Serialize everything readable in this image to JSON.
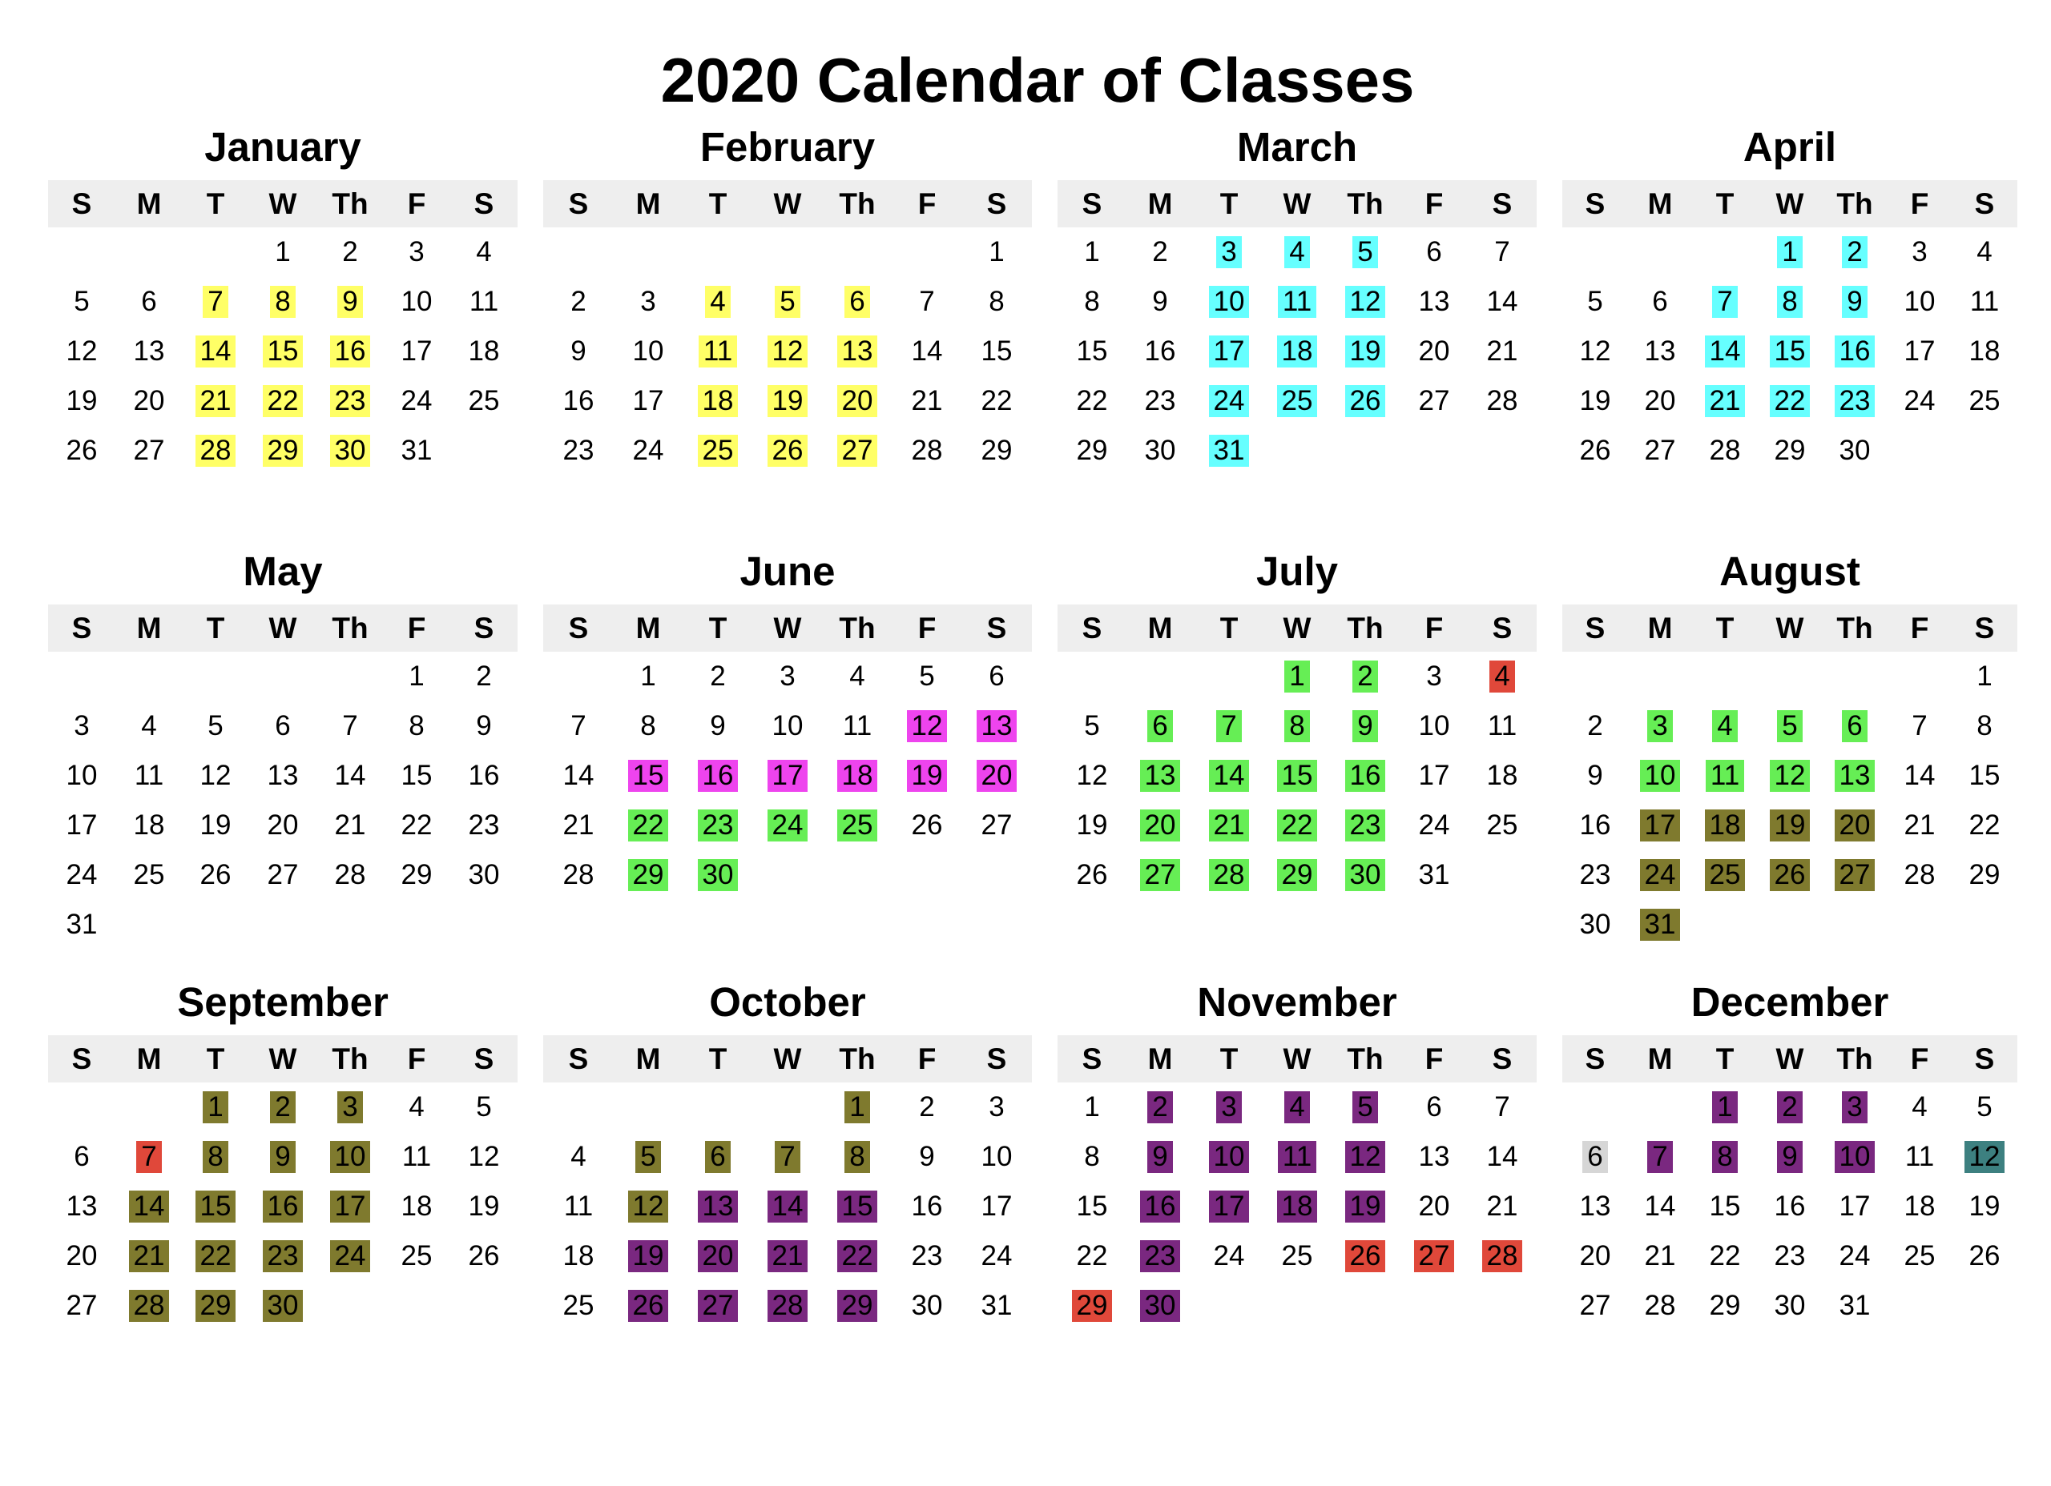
{
  "title": "2020 Calendar of Classes",
  "weekdays": [
    "S",
    "M",
    "T",
    "W",
    "Th",
    "F",
    "S"
  ],
  "colors": {
    "Y": "#ffff66",
    "C": "#66ffff",
    "M": "#ee44ee",
    "G": "#66ee55",
    "O": "#7f7a2e",
    "P": "#7a2880",
    "R": "#e0483a",
    "L": "#d6d6d6",
    "T": "#3d8080"
  },
  "months": [
    {
      "name": "January",
      "start": 3,
      "days": 31,
      "hl": {
        "7": "Y",
        "8": "Y",
        "9": "Y",
        "14": "Y",
        "15": "Y",
        "16": "Y",
        "21": "Y",
        "22": "Y",
        "23": "Y",
        "28": "Y",
        "29": "Y",
        "30": "Y"
      }
    },
    {
      "name": "February",
      "start": 6,
      "days": 29,
      "hl": {
        "4": "Y",
        "5": "Y",
        "6": "Y",
        "11": "Y",
        "12": "Y",
        "13": "Y",
        "18": "Y",
        "19": "Y",
        "20": "Y",
        "25": "Y",
        "26": "Y",
        "27": "Y"
      }
    },
    {
      "name": "March",
      "start": 0,
      "days": 31,
      "hl": {
        "3": "C",
        "4": "C",
        "5": "C",
        "10": "C",
        "11": "C",
        "12": "C",
        "17": "C",
        "18": "C",
        "19": "C",
        "24": "C",
        "25": "C",
        "26": "C",
        "31": "C"
      }
    },
    {
      "name": "April",
      "start": 3,
      "days": 30,
      "hl": {
        "1": "C",
        "2": "C",
        "7": "C",
        "8": "C",
        "9": "C",
        "14": "C",
        "15": "C",
        "16": "C",
        "21": "C",
        "22": "C",
        "23": "C"
      }
    },
    {
      "name": "May",
      "start": 5,
      "days": 31,
      "hl": {}
    },
    {
      "name": "June",
      "start": 1,
      "days": 30,
      "hl": {
        "12": "M",
        "13": "M",
        "15": "M",
        "16": "M",
        "17": "M",
        "18": "M",
        "19": "M",
        "20": "M",
        "22": "G",
        "23": "G",
        "24": "G",
        "25": "G",
        "29": "G",
        "30": "G"
      }
    },
    {
      "name": "July",
      "start": 3,
      "days": 31,
      "hl": {
        "1": "G",
        "2": "G",
        "4": "R",
        "6": "G",
        "7": "G",
        "8": "G",
        "9": "G",
        "13": "G",
        "14": "G",
        "15": "G",
        "16": "G",
        "20": "G",
        "21": "G",
        "22": "G",
        "23": "G",
        "27": "G",
        "28": "G",
        "29": "G",
        "30": "G"
      }
    },
    {
      "name": "August",
      "start": 6,
      "days": 31,
      "hl": {
        "3": "G",
        "4": "G",
        "5": "G",
        "6": "G",
        "10": "G",
        "11": "G",
        "12": "G",
        "13": "G",
        "17": "O",
        "18": "O",
        "19": "O",
        "20": "O",
        "24": "O",
        "25": "O",
        "26": "O",
        "27": "O",
        "31": "O"
      }
    },
    {
      "name": "September",
      "start": 2,
      "days": 30,
      "hl": {
        "1": "O",
        "2": "O",
        "3": "O",
        "7": "R",
        "8": "O",
        "9": "O",
        "10": "O",
        "14": "O",
        "15": "O",
        "16": "O",
        "17": "O",
        "21": "O",
        "22": "O",
        "23": "O",
        "24": "O",
        "28": "O",
        "29": "O",
        "30": "O"
      }
    },
    {
      "name": "October",
      "start": 4,
      "days": 31,
      "hl": {
        "1": "O",
        "5": "O",
        "6": "O",
        "7": "O",
        "8": "O",
        "12": "O",
        "13": "P",
        "14": "P",
        "15": "P",
        "19": "P",
        "20": "P",
        "21": "P",
        "22": "P",
        "26": "P",
        "27": "P",
        "28": "P",
        "29": "P"
      }
    },
    {
      "name": "November",
      "start": 0,
      "days": 30,
      "hl": {
        "2": "P",
        "3": "P",
        "4": "P",
        "5": "P",
        "9": "P",
        "10": "P",
        "11": "P",
        "12": "P",
        "16": "P",
        "17": "P",
        "18": "P",
        "19": "P",
        "23": "P",
        "26": "R",
        "27": "R",
        "28": "R",
        "29": "R",
        "30": "P"
      }
    },
    {
      "name": "December",
      "start": 2,
      "days": 31,
      "hl": {
        "1": "P",
        "2": "P",
        "3": "P",
        "6": "L",
        "7": "P",
        "8": "P",
        "9": "P",
        "10": "P",
        "12": "T"
      }
    }
  ]
}
